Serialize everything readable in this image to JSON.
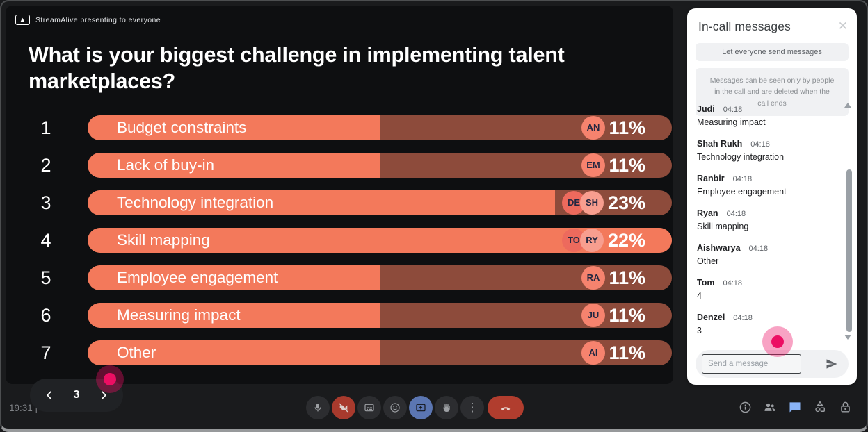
{
  "meet": {
    "presenting_badge": "StreamAlive presenting to everyone",
    "time": "19:31 |",
    "nav_page": "3",
    "more_icon": "⋮",
    "close_icon": "✕"
  },
  "poll": {
    "question": "What is your biggest challenge in implementing talent marketplaces?",
    "options": [
      {
        "rank": "1",
        "label": "Budget constraints",
        "percent": 11,
        "percent_label": "11%",
        "fill_pct": 50,
        "avatars": [
          "AN"
        ]
      },
      {
        "rank": "2",
        "label": "Lack of buy-in",
        "percent": 11,
        "percent_label": "11%",
        "fill_pct": 50,
        "avatars": [
          "EM"
        ]
      },
      {
        "rank": "3",
        "label": "Technology integration",
        "percent": 23,
        "percent_label": "23%",
        "fill_pct": 80,
        "avatars": [
          "DE",
          "SH"
        ]
      },
      {
        "rank": "4",
        "label": "Skill mapping",
        "percent": 22,
        "percent_label": "22%",
        "fill_pct": 100,
        "avatars": [
          "TO",
          "RY"
        ]
      },
      {
        "rank": "5",
        "label": "Employee engagement",
        "percent": 11,
        "percent_label": "11%",
        "fill_pct": 50,
        "avatars": [
          "RA"
        ]
      },
      {
        "rank": "6",
        "label": "Measuring impact",
        "percent": 11,
        "percent_label": "11%",
        "fill_pct": 50,
        "avatars": [
          "JU"
        ]
      },
      {
        "rank": "7",
        "label": "Other",
        "percent": 11,
        "percent_label": "11%",
        "fill_pct": 50,
        "avatars": [
          "AI"
        ]
      }
    ]
  },
  "chat": {
    "title": "In-call messages",
    "toggle_label": "Let everyone send messages",
    "notice": "Messages can be seen only by people in the call and are deleted when the call ends",
    "messages": [
      {
        "name": "Judi",
        "time": "04:18",
        "text": "Measuring impact"
      },
      {
        "name": "Shah Rukh",
        "time": "04:18",
        "text": "Technology integration"
      },
      {
        "name": "Ranbir",
        "time": "04:18",
        "text": "Employee engagement"
      },
      {
        "name": "Ryan",
        "time": "04:18",
        "text": "Skill mapping"
      },
      {
        "name": "Aishwarya",
        "time": "04:18",
        "text": "Other"
      },
      {
        "name": "Tom",
        "time": "04:18",
        "text": "4"
      },
      {
        "name": "Denzel",
        "time": "04:18",
        "text": "3"
      }
    ],
    "input_placeholder": "Send a message"
  },
  "colors": {
    "accent_salmon": "#F3795B",
    "bar_track": "#8D4B3B",
    "cursor_pink": "#EC0E63",
    "chat_blue": "#8AB4F8",
    "meet_red": "#B13D2E",
    "present_blue": "#5B76B2"
  }
}
